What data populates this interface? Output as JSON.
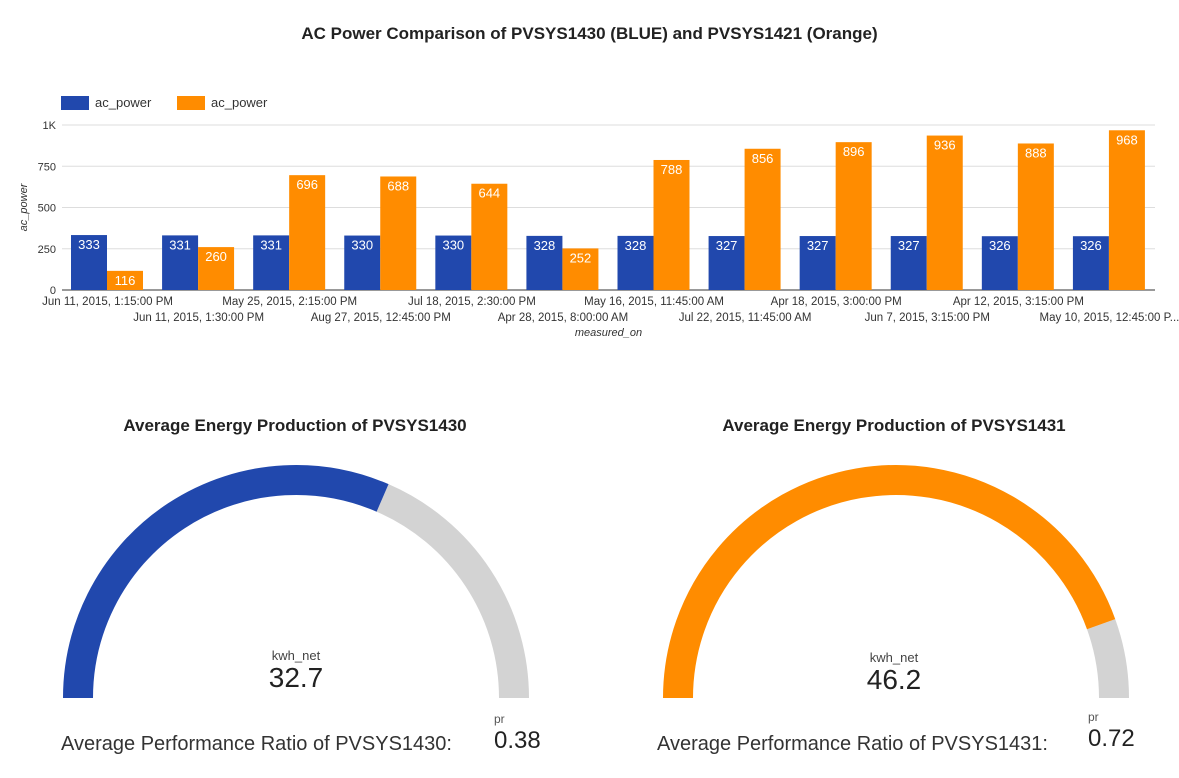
{
  "chart_data": [
    {
      "type": "bar",
      "title": "AC Power Comparison of PVSYS1430 (BLUE) and PVSYS1421 (Orange)",
      "xlabel": "measured_on",
      "ylabel": "ac_power",
      "ylim": [
        0,
        1000
      ],
      "yticks": [
        "0",
        "250",
        "500",
        "750",
        "1K"
      ],
      "ytick_values": [
        0,
        250,
        500,
        750,
        1000
      ],
      "grid": true,
      "legend_position": "top-left",
      "categories": [
        "Jun 11, 2015, 1:15:00 PM",
        "Jun 11, 2015, 1:30:00 PM",
        "May 25, 2015, 2:15:00 PM",
        "Aug 27, 2015, 12:45:00 PM",
        "Jul 18, 2015, 2:30:00 PM",
        "Apr 28, 2015, 8:00:00 AM",
        "May 16, 2015, 11:45:00 AM",
        "Jul 22, 2015, 11:45:00 AM",
        "Apr 18, 2015, 3:00:00 PM",
        "Jun 7, 2015, 3:15:00 PM",
        "Apr 12, 2015, 3:15:00 PM",
        "May 10, 2015, 12:45:00 P..."
      ],
      "series": [
        {
          "name": "ac_power",
          "color": "#2148ad",
          "values": [
            333,
            331,
            331,
            330,
            330,
            328,
            328,
            327,
            327,
            327,
            326,
            326
          ]
        },
        {
          "name": "ac_power",
          "color": "#ff8c00",
          "values": [
            116,
            260,
            696,
            688,
            644,
            252,
            788,
            856,
            896,
            936,
            888,
            968
          ]
        }
      ]
    },
    {
      "type": "gauge",
      "title": "Average Energy Production of PVSYS1430",
      "label": "kwh_net",
      "value": 32.7,
      "value_text": "32.7",
      "fill_fraction": 0.63,
      "color": "#2148ad",
      "track_color": "#d3d3d3"
    },
    {
      "type": "gauge",
      "title": "Average Energy Production of PVSYS1431",
      "label": "kwh_net",
      "value": 46.2,
      "value_text": "46.2",
      "fill_fraction": 0.89,
      "color": "#ff8c00",
      "track_color": "#d3d3d3"
    }
  ],
  "scorecards": [
    {
      "caption": "Average Performance Ratio of PVSYS1430:",
      "label": "pr",
      "value": "0.38"
    },
    {
      "caption": "Average Performance Ratio of PVSYS1431:",
      "label": "pr",
      "value": "0.72"
    }
  ]
}
